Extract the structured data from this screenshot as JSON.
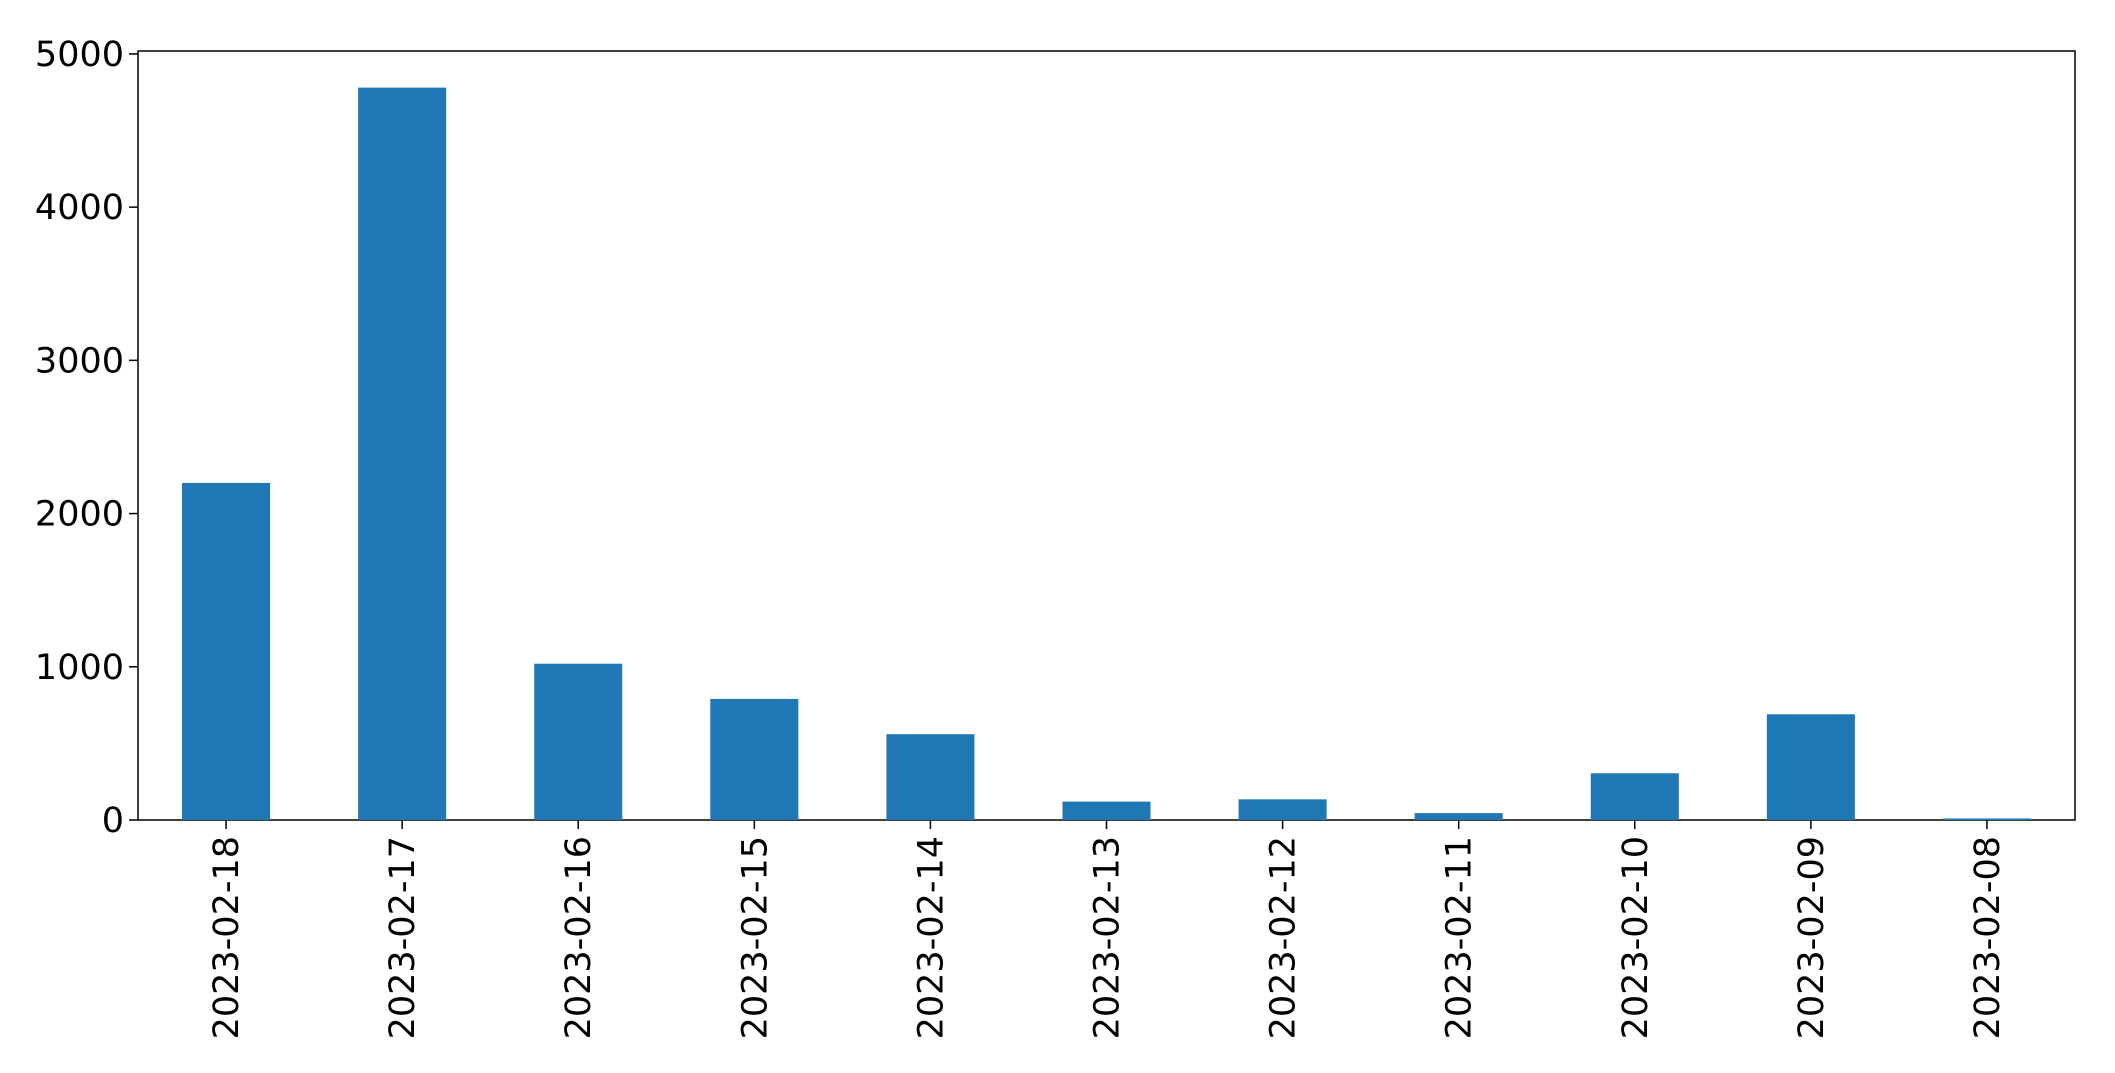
{
  "chart_data": {
    "type": "bar",
    "categories": [
      "2023-02-18",
      "2023-02-17",
      "2023-02-16",
      "2023-02-15",
      "2023-02-14",
      "2023-02-13",
      "2023-02-12",
      "2023-02-11",
      "2023-02-10",
      "2023-02-09",
      "2023-02-08"
    ],
    "values": [
      2200,
      4780,
      1020,
      790,
      560,
      120,
      135,
      45,
      305,
      690,
      10
    ],
    "color": "#1f77b4",
    "ylim": [
      0,
      5019
    ],
    "yticks": [
      0,
      1000,
      2000,
      3000,
      4000,
      5000
    ],
    "grid": false
  }
}
